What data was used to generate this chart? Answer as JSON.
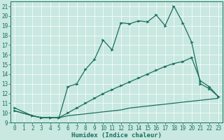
{
  "xlabel": "Humidex (Indice chaleur)",
  "bg_color": "#c8e8e0",
  "line_color": "#1a7060",
  "grid_color": "#ffffff",
  "xlim": [
    -0.5,
    23.5
  ],
  "ylim": [
    9,
    21.5
  ],
  "xticks": [
    0,
    1,
    2,
    3,
    4,
    5,
    6,
    7,
    8,
    9,
    10,
    11,
    12,
    13,
    14,
    15,
    16,
    17,
    18,
    19,
    20,
    21,
    22,
    23
  ],
  "yticks": [
    9,
    10,
    11,
    12,
    13,
    14,
    15,
    16,
    17,
    18,
    19,
    20,
    21
  ],
  "line1_x": [
    0,
    2,
    3,
    4,
    5,
    6,
    7,
    8,
    9,
    10,
    11,
    12,
    13,
    14,
    15,
    16,
    17,
    18,
    19,
    20,
    21,
    22,
    23
  ],
  "line1_y": [
    10.5,
    9.7,
    9.5,
    9.5,
    9.5,
    12.7,
    13.0,
    14.5,
    15.5,
    17.5,
    16.5,
    19.3,
    19.2,
    19.5,
    19.4,
    20.1,
    19.0,
    21.0,
    19.3,
    17.3,
    13.0,
    12.5,
    11.7
  ],
  "line2_x": [
    0,
    2,
    3,
    4,
    5,
    6,
    7,
    8,
    9,
    10,
    11,
    12,
    13,
    14,
    15,
    16,
    17,
    18,
    19,
    20,
    21,
    22,
    23
  ],
  "line2_y": [
    10.2,
    9.7,
    9.5,
    9.5,
    9.5,
    10.0,
    10.5,
    11.0,
    11.5,
    12.0,
    12.4,
    12.8,
    13.2,
    13.6,
    14.0,
    14.4,
    14.8,
    15.1,
    15.3,
    15.7,
    13.3,
    12.7,
    11.7
  ],
  "line3_x": [
    0,
    2,
    3,
    4,
    5,
    6,
    7,
    8,
    9,
    10,
    11,
    12,
    13,
    14,
    15,
    16,
    17,
    18,
    19,
    20,
    21,
    22,
    23
  ],
  "line3_y": [
    10.2,
    9.7,
    9.5,
    9.5,
    9.5,
    9.7,
    9.8,
    9.9,
    10.0,
    10.1,
    10.2,
    10.3,
    10.5,
    10.6,
    10.7,
    10.8,
    10.9,
    11.0,
    11.1,
    11.2,
    11.3,
    11.4,
    11.5
  ],
  "tick_fontsize": 5.5,
  "xlabel_fontsize": 6.5,
  "marker_size": 2.5
}
